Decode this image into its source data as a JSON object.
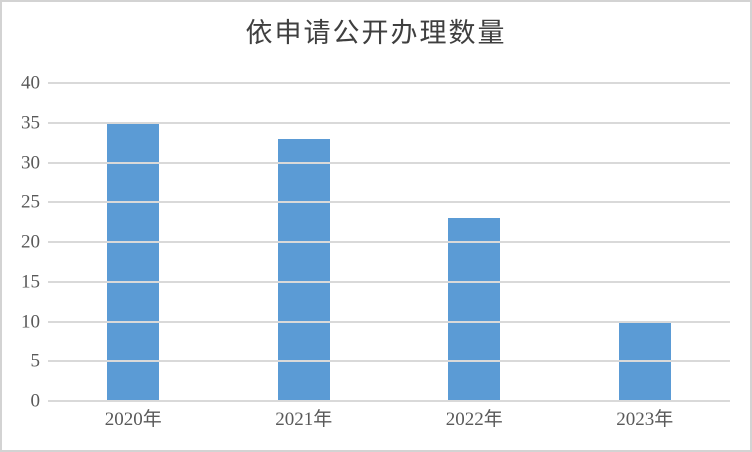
{
  "page": {
    "background": "#ffffff",
    "frame_border_color": "#d3d3d3"
  },
  "chart_data": {
    "type": "bar",
    "title": "依申请公开办理数量",
    "categories": [
      "2020年",
      "2021年",
      "2022年",
      "2023年"
    ],
    "values": [
      35,
      33,
      23,
      10
    ],
    "xlabel": "",
    "ylabel": "",
    "ylim": [
      0,
      40
    ],
    "yticks": [
      0,
      5,
      10,
      15,
      20,
      25,
      30,
      35,
      40
    ],
    "grid": true,
    "legend_position": "none",
    "bar_color": "#5B9BD5",
    "gridline_color": "#D9D9D9",
    "axis_label_color": "#595959",
    "title_color": "#3F3F3F"
  }
}
